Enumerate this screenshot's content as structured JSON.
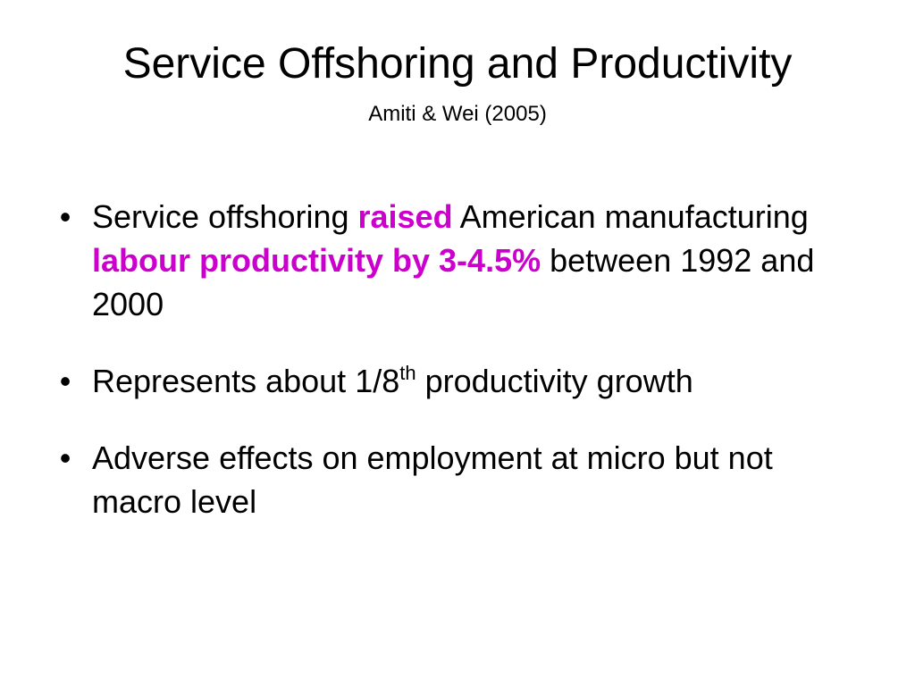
{
  "slide": {
    "title": "Service Offshoring and Productivity",
    "subtitle": "Amiti & Wei (2005)",
    "highlight_color": "#CC00CC",
    "bullet_symbol": "•",
    "bullets": [
      {
        "seg1": "Service offshoring ",
        "hl1": "raised",
        "seg2": " American manufacturing ",
        "hl2": "labour productivity by 3-4.5%",
        "seg3": " between 1992 and 2000"
      },
      {
        "seg1": "Represents about 1/8",
        "sup": "th",
        "seg2": " productivity growth"
      },
      {
        "text": "Adverse effects on employment at micro but not macro level"
      }
    ]
  }
}
